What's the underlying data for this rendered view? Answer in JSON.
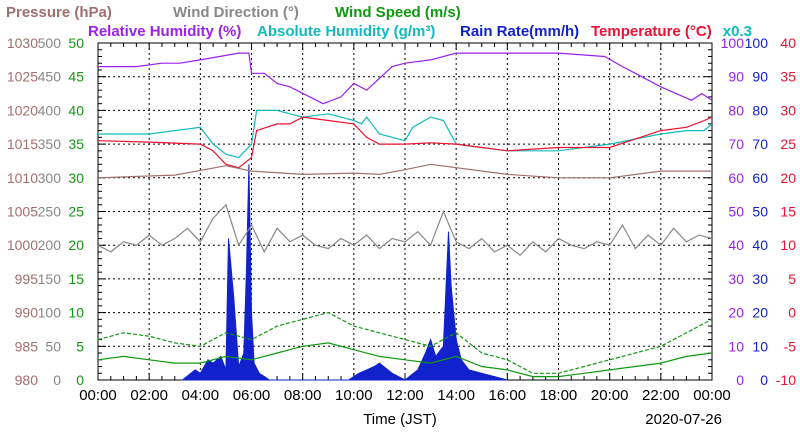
{
  "chart_data": {
    "type": "line",
    "date_label": "2020-07-26",
    "x_axis_label": "Time (JST)",
    "x_ticks": [
      "00:00",
      "02:00",
      "04:00",
      "06:00",
      "08:00",
      "10:00",
      "12:00",
      "14:00",
      "16:00",
      "18:00",
      "20:00",
      "22:00",
      "00:00"
    ],
    "grid": true,
    "legend": [
      {
        "text": "Pressure (hPa)",
        "color": "#a0706e",
        "row": "top"
      },
      {
        "text": "Wind Direction (°)",
        "color": "#888888",
        "row": "top"
      },
      {
        "text": "Wind Speed (m/s)",
        "color": "#119911",
        "row": "top"
      },
      {
        "text": "Relative Humidity (%)",
        "color": "#9922ee",
        "row": "second"
      },
      {
        "text": "Absolute Humidity (g/m³)",
        "color": "#11bbbb",
        "row": "second"
      },
      {
        "text": "Rain Rate(mm/h)",
        "color": "#1122cc",
        "row": "second"
      },
      {
        "text": "Temperature (°C)",
        "color": "#ee1133",
        "row": "second"
      }
    ],
    "abs_humidity_scale_note": "x0.3",
    "axes": [
      {
        "name": "pressure",
        "color": "#a0706e",
        "ticks": [
          "980",
          "985",
          "990",
          "995",
          "1000",
          "1005",
          "1010",
          "1015",
          "1020",
          "1025",
          "1030"
        ]
      },
      {
        "name": "wind_direction",
        "color": "#888888",
        "ticks": [
          "0",
          "50",
          "100",
          "150",
          "200",
          "250",
          "300",
          "350",
          "400",
          "450",
          "500"
        ]
      },
      {
        "name": "wind_speed",
        "color": "#119911",
        "ticks": [
          "0",
          "5",
          "10",
          "15",
          "20",
          "25",
          "30",
          "35",
          "40",
          "45",
          "50"
        ]
      },
      {
        "name": "relative_humidity",
        "color": "#9922ee",
        "ticks": [
          "0",
          "10",
          "20",
          "30",
          "40",
          "50",
          "60",
          "70",
          "80",
          "90",
          "100"
        ]
      },
      {
        "name": "rain_rate",
        "color": "#1122cc",
        "ticks": [
          "0",
          "10",
          "20",
          "30",
          "40",
          "50",
          "60",
          "70",
          "80",
          "90",
          "100"
        ]
      },
      {
        "name": "temperature",
        "color": "#ee1133",
        "ticks": [
          "-10",
          "-5",
          "0",
          "5",
          "10",
          "15",
          "20",
          "25",
          "30",
          "35",
          "40"
        ]
      }
    ],
    "series": [
      {
        "name": "Relative Humidity (%)",
        "axis": "relative_humidity",
        "color": "#9922ee",
        "x": [
          0,
          1.5,
          2.5,
          3.2,
          4,
          5.5,
          5.9,
          6,
          6.5,
          7,
          7.5,
          8.8,
          9.5,
          10,
          10.5,
          11.5,
          12,
          13,
          13.5,
          14,
          16,
          18,
          19.8,
          20.5,
          21,
          22,
          23.2,
          23.6,
          24
        ],
        "y": [
          93,
          93,
          94,
          94,
          95,
          97,
          97,
          91,
          91,
          88,
          87,
          82,
          84,
          88,
          86,
          93,
          94,
          95,
          96,
          97,
          97,
          97,
          96,
          93,
          91,
          87,
          83,
          85,
          83
        ]
      },
      {
        "name": "Absolute Humidity (g/m³) x0.3",
        "axis": "relative_humidity",
        "color": "#11bbbb",
        "x": [
          0,
          2,
          4,
          4.5,
          5,
          5.5,
          6,
          6.2,
          7,
          7.5,
          8,
          9,
          10,
          10.3,
          10.5,
          11,
          12,
          12.3,
          13,
          13.5,
          14,
          15,
          16,
          18,
          20,
          22,
          23,
          23.7,
          24
        ],
        "y": [
          73,
          73,
          75,
          70,
          67,
          66,
          70,
          80,
          80,
          79,
          78,
          79,
          77,
          76,
          78,
          73,
          71,
          75,
          78,
          77,
          70,
          69,
          68,
          68,
          70,
          73,
          74,
          74,
          76
        ]
      },
      {
        "name": "Temperature (°C)",
        "axis": "temperature",
        "color": "#ee1133",
        "x": [
          0,
          2,
          4,
          4.5,
          5,
          5.5,
          6,
          6.2,
          7,
          7.5,
          8,
          9,
          10,
          10.5,
          11,
          12,
          13,
          14,
          15,
          16,
          18,
          20,
          22,
          23,
          23.7,
          24
        ],
        "y": [
          25.5,
          25.3,
          25,
          24,
          22,
          21.5,
          23,
          27,
          28,
          28,
          29,
          28.5,
          28,
          26,
          25,
          25,
          25.2,
          25,
          24.5,
          24,
          24.5,
          24.5,
          27,
          27.5,
          28.5,
          29
        ]
      },
      {
        "name": "Pressure (hPa)",
        "axis": "pressure",
        "color": "#a0706e",
        "x": [
          0,
          3,
          5,
          6,
          8,
          10,
          11,
          12,
          13,
          14,
          16,
          18,
          20,
          22,
          24
        ],
        "y": [
          1010,
          1010.4,
          1011.8,
          1011,
          1010.5,
          1010.7,
          1010.5,
          1011.2,
          1012,
          1011.5,
          1010.5,
          1010,
          1010,
          1011,
          1011
        ]
      },
      {
        "name": "Wind Direction (°)",
        "axis": "wind_direction",
        "color": "#888888",
        "x": [
          0,
          0.5,
          1,
          1.5,
          2,
          2.5,
          3,
          3.5,
          4,
          4.5,
          5,
          5.5,
          6,
          6.5,
          7,
          7.5,
          8,
          8.5,
          9,
          9.5,
          10,
          10.5,
          11,
          11.5,
          12,
          12.5,
          13,
          13.5,
          14,
          14.5,
          15,
          15.5,
          16,
          16.5,
          17,
          17.5,
          18,
          18.5,
          19,
          19.5,
          20,
          20.5,
          21,
          21.5,
          22,
          22.5,
          23,
          23.5,
          24
        ],
        "y": [
          200,
          190,
          205,
          200,
          215,
          200,
          210,
          225,
          205,
          240,
          260,
          200,
          230,
          190,
          225,
          205,
          215,
          200,
          195,
          210,
          200,
          215,
          195,
          210,
          205,
          220,
          200,
          250,
          205,
          195,
          210,
          190,
          200,
          185,
          205,
          190,
          210,
          200,
          195,
          205,
          200,
          230,
          195,
          215,
          200,
          225,
          205,
          215,
          210
        ]
      },
      {
        "name": "Wind Speed (m/s)",
        "axis": "wind_speed",
        "color": "#119911",
        "dash": true,
        "x": [
          0,
          1,
          2,
          3,
          4,
          5,
          6,
          7,
          8,
          9,
          10,
          11,
          12,
          13,
          14,
          15,
          16,
          17,
          18,
          19,
          20,
          21,
          22,
          23,
          24
        ],
        "y": [
          6,
          7,
          6.5,
          5.5,
          5,
          7,
          6,
          8,
          9,
          10,
          8,
          7,
          6,
          5,
          7,
          4,
          3,
          1,
          1,
          2,
          3,
          4,
          5,
          7,
          9
        ]
      },
      {
        "name": "Wind Speed (m/s)",
        "axis": "wind_speed",
        "color": "#119911",
        "x": [
          0,
          1,
          2,
          3,
          4,
          5,
          6,
          7,
          8,
          9,
          10,
          11,
          12,
          13,
          14,
          15,
          16,
          17,
          18,
          19,
          20,
          21,
          22,
          23,
          24
        ],
        "y": [
          3,
          3.5,
          3,
          2.5,
          2.5,
          3.5,
          3,
          4,
          5,
          5.5,
          4.5,
          3.5,
          3,
          2.5,
          3.5,
          2,
          1.5,
          0.5,
          0.5,
          1,
          1.5,
          2,
          2.5,
          3.5,
          4
        ]
      },
      {
        "name": "Rain Rate(mm/h)",
        "axis": "rain_rate",
        "color": "#1122cc",
        "fill": true,
        "x": [
          3.3,
          3.8,
          4,
          4.3,
          4.5,
          4.8,
          5,
          5.1,
          5.3,
          5.5,
          5.7,
          5.8,
          5.9,
          6,
          6.1,
          6.3,
          6.5,
          6.7,
          7,
          7.5,
          8,
          8.5,
          9,
          9.5,
          9.8,
          10,
          10.2,
          10.5,
          10.8,
          11,
          11.5,
          12,
          12.5,
          12.8,
          13,
          13.2,
          13.5,
          13.7,
          13.8,
          14,
          14.2,
          14.5,
          15,
          15.5,
          16
        ],
        "y": [
          0,
          3,
          2,
          6,
          5,
          7,
          3,
          42,
          25,
          4,
          8,
          32,
          64,
          20,
          5,
          2,
          1,
          0,
          0,
          0,
          0,
          0,
          0,
          0,
          0,
          1,
          2,
          3,
          4,
          5,
          2,
          0,
          3,
          8,
          12,
          7,
          10,
          44,
          28,
          12,
          6,
          3,
          2,
          1,
          0
        ]
      }
    ]
  }
}
